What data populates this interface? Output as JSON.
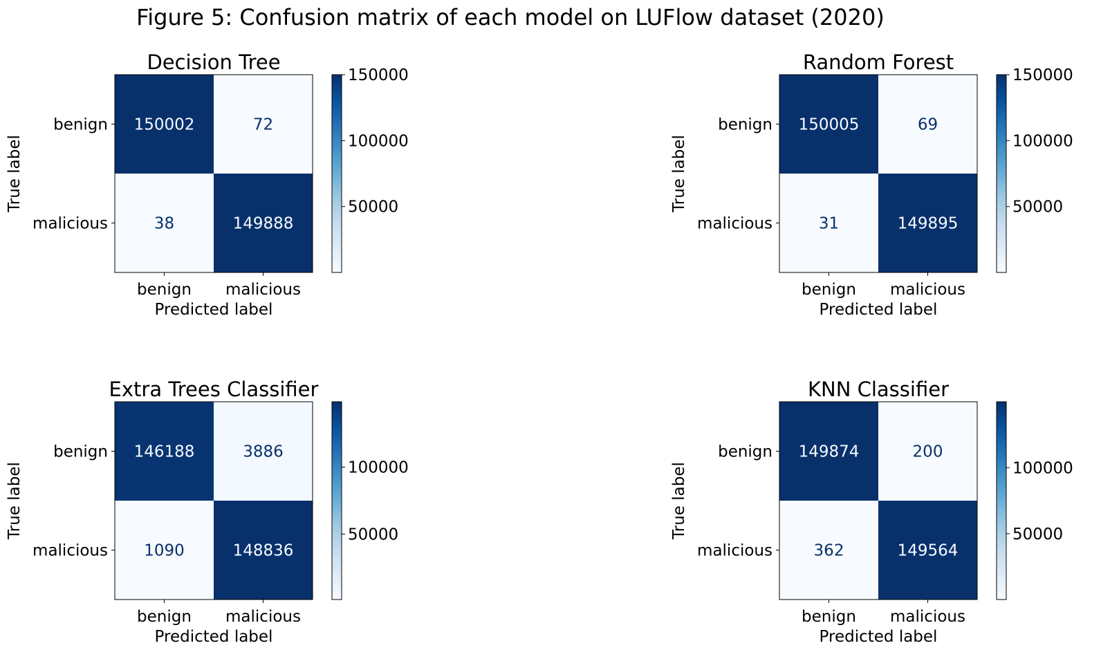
{
  "figure_title": "Figure 5: Confusion matrix of each model on LUFlow dataset (2020)",
  "colormap": "Blues",
  "colors": {
    "dark": "#08306b",
    "light": "#f7fbff",
    "text_on_dark": "#f7fbff",
    "text_on_light": "#08306b"
  },
  "chart_data": [
    {
      "type": "heatmap",
      "title": "Decision Tree",
      "xlabel": "Predicted label",
      "ylabel": "True label",
      "x_ticklabels": [
        "benign",
        "malicious"
      ],
      "y_ticklabels": [
        "benign",
        "malicious"
      ],
      "matrix": [
        [
          150002,
          72
        ],
        [
          38,
          149888
        ]
      ],
      "colorbar_ticks": [
        50000,
        100000,
        150000
      ]
    },
    {
      "type": "heatmap",
      "title": "Random Forest",
      "xlabel": "Predicted label",
      "ylabel": "True label",
      "x_ticklabels": [
        "benign",
        "malicious"
      ],
      "y_ticklabels": [
        "benign",
        "malicious"
      ],
      "matrix": [
        [
          150005,
          69
        ],
        [
          31,
          149895
        ]
      ],
      "colorbar_ticks": [
        50000,
        100000,
        150000
      ]
    },
    {
      "type": "heatmap",
      "title": "Extra Trees Classifier",
      "xlabel": "Predicted label",
      "ylabel": "True label",
      "x_ticklabels": [
        "benign",
        "malicious"
      ],
      "y_ticklabels": [
        "benign",
        "malicious"
      ],
      "matrix": [
        [
          146188,
          3886
        ],
        [
          1090,
          148836
        ]
      ],
      "colorbar_ticks": [
        50000,
        100000
      ]
    },
    {
      "type": "heatmap",
      "title": "KNN Classifier",
      "xlabel": "Predicted label",
      "ylabel": "True label",
      "x_ticklabels": [
        "benign",
        "malicious"
      ],
      "y_ticklabels": [
        "benign",
        "malicious"
      ],
      "matrix": [
        [
          149874,
          200
        ],
        [
          362,
          149564
        ]
      ],
      "colorbar_ticks": [
        50000,
        100000
      ]
    }
  ]
}
